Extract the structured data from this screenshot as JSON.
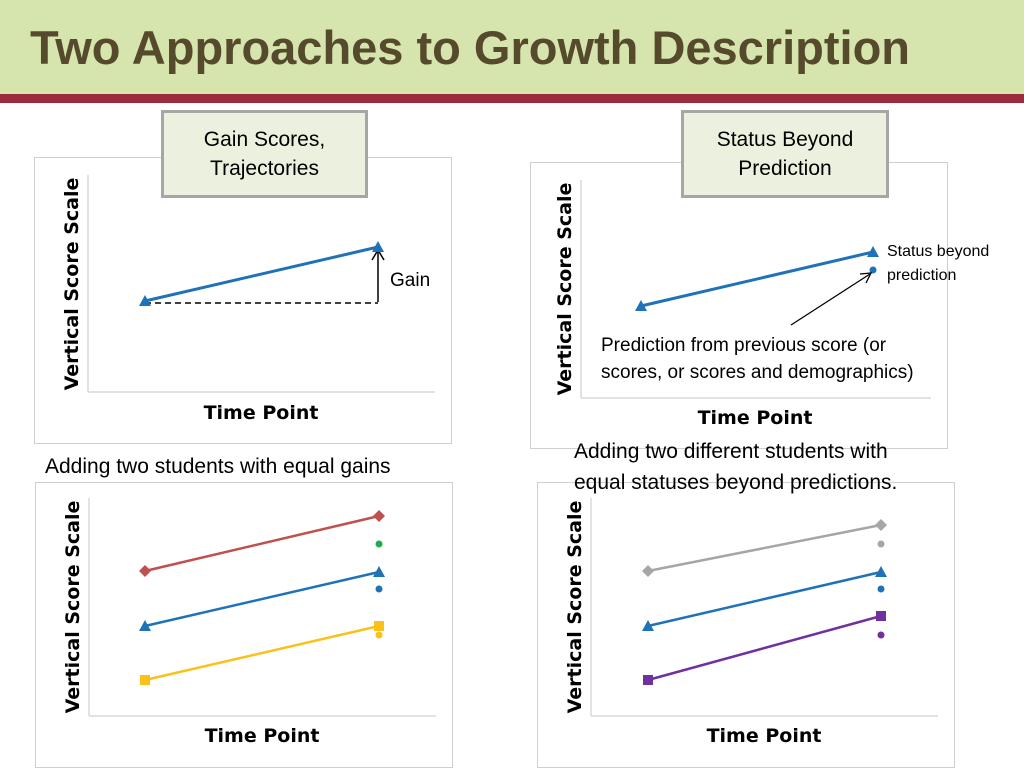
{
  "title": "Two Approaches to Growth Description",
  "colors": {
    "header_bg": "#d6e4ad",
    "header_bar": "#9b2c3d",
    "title_text": "#564a2c",
    "blue": "#1f72b8",
    "red": "#c0504d",
    "gold": "#fcc01a",
    "green": "#1fad4c",
    "gray": "#a6a6a6",
    "purple": "#7030a0"
  },
  "labels": {
    "gain_scores_line1": "Gain Scores,",
    "gain_scores_line2": "Trajectories",
    "status_beyond_line1": "Status Beyond",
    "status_beyond_line2": "Prediction"
  },
  "captions": {
    "equal_gains": "Adding two students with equal gains",
    "equal_statuses_line1": "Adding two different students with",
    "equal_statuses_line2": "equal statuses beyond predictions."
  },
  "panels": {
    "gain": {
      "y_axis_label": "Vertical Score Scale",
      "x_axis_label": "Time Point",
      "gain_label": "Gain"
    },
    "status": {
      "y_axis_label": "Vertical Score Scale",
      "x_axis_label": "Time Point",
      "status_label_line1": "Status beyond",
      "status_label_line2": "prediction",
      "prediction_note_line1": "Prediction from previous score (or",
      "prediction_note_line2": "scores, or scores and demographics)"
    },
    "equal_gains": {
      "y_axis_label": "Vertical Score Scale",
      "x_axis_label": "Time Point"
    },
    "equal_statuses": {
      "y_axis_label": "Vertical Score Scale",
      "x_axis_label": "Time Point"
    }
  }
}
